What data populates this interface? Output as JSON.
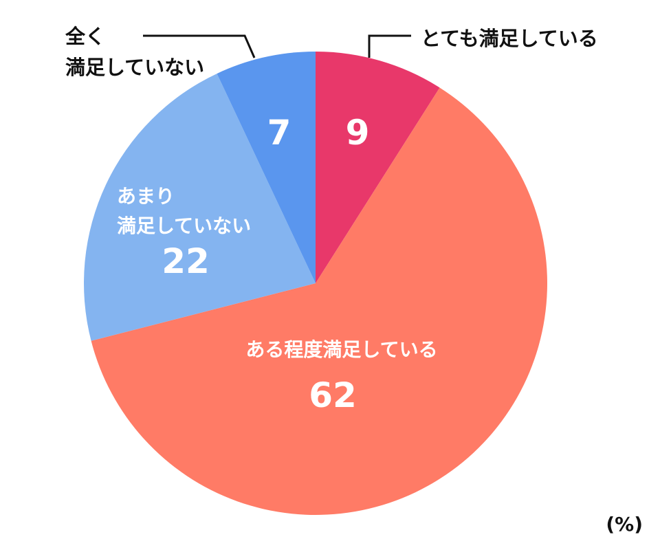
{
  "chart_data": {
    "type": "pie",
    "unit": "(%)",
    "slices": [
      {
        "label": "とても満足している",
        "value": 9,
        "color": "#e8386a"
      },
      {
        "label": "ある程度満足している",
        "value": 62,
        "color": "#ff7b66"
      },
      {
        "label": "あまり満足していない",
        "value": 22,
        "color": "#84b4f0"
      },
      {
        "label": "全く満足していない",
        "value": 7,
        "color": "#5a96ee"
      }
    ]
  },
  "label_lines": {
    "slice_0": [
      "とても満足している"
    ],
    "slice_1": [
      "ある程度満足している"
    ],
    "slice_2": [
      "あまり",
      "満足していない"
    ],
    "slice_3": [
      "全く",
      "満足していない"
    ]
  }
}
